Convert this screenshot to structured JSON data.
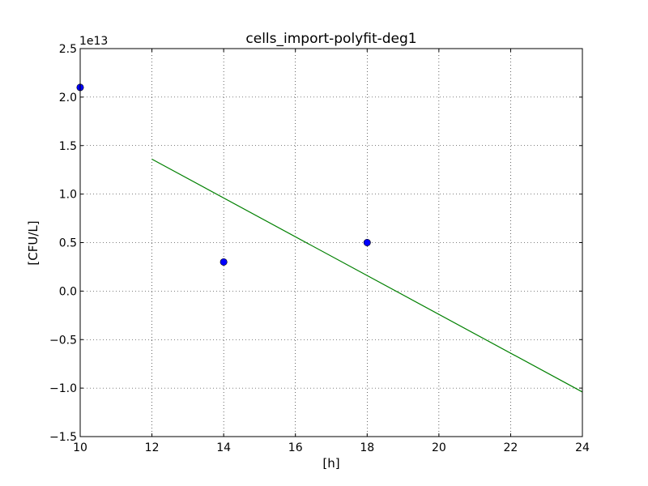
{
  "chart_data": {
    "type": "scatter",
    "title": "cells_import-polyfit-deg1",
    "xlabel": "[h]",
    "ylabel": "[CFU/L]",
    "y_offset_label": "1e13",
    "xlim": [
      10,
      24
    ],
    "ylim": [
      -15000000000000.0,
      25000000000000.0
    ],
    "x_ticks": [
      10,
      12,
      14,
      16,
      18,
      20,
      22,
      24
    ],
    "x_tick_labels": [
      "10",
      "12",
      "14",
      "16",
      "18",
      "20",
      "22",
      "24"
    ],
    "y_ticks": [
      -15000000000000.0,
      -10000000000000.0,
      -5000000000000.0,
      0,
      5000000000000.0,
      10000000000000.0,
      15000000000000.0,
      20000000000000.0,
      25000000000000.0
    ],
    "y_tick_labels": [
      "−1.5",
      "−1.0",
      "−0.5",
      "0.0",
      "0.5",
      "1.0",
      "1.5",
      "2.0",
      "2.5"
    ],
    "grid": true,
    "series": [
      {
        "kind": "points",
        "color": "#0000ff",
        "x": [
          10,
          14,
          18
        ],
        "y": [
          21000000000000.0,
          3000000000000.0,
          5000000000000.0
        ]
      },
      {
        "kind": "line",
        "color": "#008000",
        "x": [
          12,
          24
        ],
        "y": [
          13600000000000.0,
          -10400000000000.0
        ]
      }
    ]
  }
}
